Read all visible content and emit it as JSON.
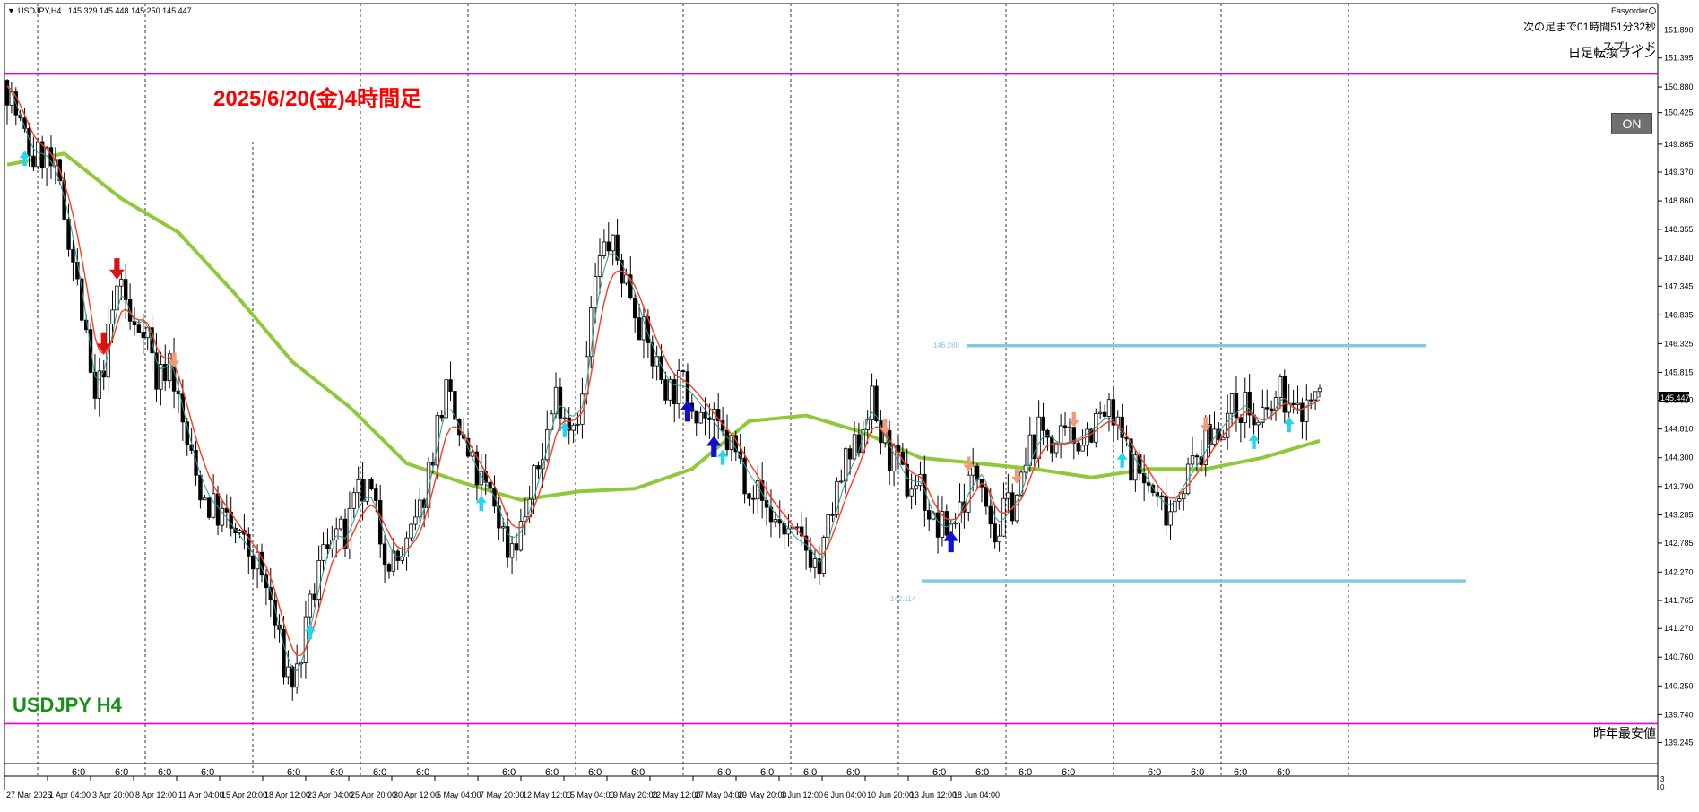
{
  "header": {
    "symbol_label": "USDJPY,H4",
    "ohlc": "145.329 145.448 145.250 145.447",
    "easyorder": "Easyorder",
    "countdown": "次の足まで01時間51分32秒",
    "spread": "スプレッド"
  },
  "annotations": {
    "date_title": "2025/6/20(金)4時間足",
    "pair_label": "USDJPY H4",
    "daily_line_label": "日足転換ライン",
    "last_year_low_label": "昨年最安値",
    "range_high": "146.288",
    "range_low": "142.114",
    "price_tag": "145.447"
  },
  "on_button": "ON",
  "colors": {
    "title_red": "#ff0000",
    "pair_green": "#1a8f1a",
    "magenta_line": "#e000e0",
    "range_line": "#87c7e6",
    "ma_long": "#8fc93a",
    "ma_fast": "#ff3b1f",
    "ma_slow": "#2e9e8e",
    "arrow_up_dark": "#1111cc",
    "arrow_down_dark": "#dd1111",
    "arrow_up_light": "#22d6f0",
    "arrow_down_light": "#f29a7a"
  },
  "chart_data": {
    "type": "candlestick",
    "symbol": "USDJPY",
    "timeframe": "H4",
    "ylim": [
      139.03,
      152.09
    ],
    "y_ticks": [
      "151.890",
      "151.395",
      "150.880",
      "150.425",
      "149.865",
      "149.370",
      "148.860",
      "148.355",
      "147.840",
      "147.345",
      "146.835",
      "146.325",
      "145.815",
      "145.320",
      "144.810",
      "144.300",
      "143.790",
      "143.285",
      "142.785",
      "142.270",
      "141.765",
      "141.270",
      "140.760",
      "140.250",
      "139.740",
      "139.245"
    ],
    "x_ticks": [
      "27 Mar 2025",
      "1 Apr 04:00",
      "3 Apr 20:00",
      "8 Apr 12:00",
      "11 Apr 04:00",
      "15 Apr 20:00",
      "18 Apr 12:00",
      "23 Apr 04:00",
      "25 Apr 20:00",
      "30 Apr 12:00",
      "5 May 04:00",
      "7 May 20:00",
      "12 May 12:00",
      "15 May 04:00",
      "19 May 20:00",
      "22 May 12:00",
      "27 May 04:00",
      "29 May 20:00",
      "3 Jun 12:00",
      "6 Jun 04:00",
      "10 Jun 20:00",
      "13 Jun 12:00",
      "18 Jun 04:00"
    ],
    "session_marker": "6:0",
    "horizontal_lines": [
      {
        "name": "日足転換ライン",
        "price": 151.11
      },
      {
        "name": "昨年最安値",
        "price": 139.58
      }
    ],
    "range_levels": {
      "high": 146.288,
      "low": 142.114
    },
    "current_price": 145.447,
    "close_path": [
      {
        "x": "27 Mar 2025",
        "y": 150.9
      },
      {
        "x": "28 Mar",
        "y": 150.2
      },
      {
        "x": "31 Mar",
        "y": 149.6
      },
      {
        "x": "1 Apr 04:00",
        "y": 149.7
      },
      {
        "x": "1 Apr",
        "y": 149.2
      },
      {
        "x": "2 Apr",
        "y": 148.2
      },
      {
        "x": "2 Apr",
        "y": 146.8
      },
      {
        "x": "3 Apr 20:00",
        "y": 145.2
      },
      {
        "x": "4 Apr",
        "y": 146.3
      },
      {
        "x": "7 Apr",
        "y": 147.6
      },
      {
        "x": "7 Apr",
        "y": 146.5
      },
      {
        "x": "8 Apr 12:00",
        "y": 146.8
      },
      {
        "x": "9 Apr",
        "y": 145.6
      },
      {
        "x": "9 Apr",
        "y": 146.1
      },
      {
        "x": "10 Apr",
        "y": 144.9
      },
      {
        "x": "10 Apr",
        "y": 144.0
      },
      {
        "x": "11 Apr 04:00",
        "y": 143.5
      },
      {
        "x": "14 Apr",
        "y": 143.3
      },
      {
        "x": "15 Apr 20:00",
        "y": 143.0
      },
      {
        "x": "16 Apr",
        "y": 142.7
      },
      {
        "x": "17 Apr",
        "y": 142.4
      },
      {
        "x": "18 Apr 12:00",
        "y": 141.8
      },
      {
        "x": "21 Apr",
        "y": 140.7
      },
      {
        "x": "21 Apr",
        "y": 140.3
      },
      {
        "x": "22 Apr",
        "y": 141.3
      },
      {
        "x": "22 Apr",
        "y": 142.4
      },
      {
        "x": "23 Apr 04:00",
        "y": 143.1
      },
      {
        "x": "24 Apr",
        "y": 142.8
      },
      {
        "x": "24 Apr",
        "y": 143.6
      },
      {
        "x": "25 Apr 20:00",
        "y": 143.7
      },
      {
        "x": "28 Apr",
        "y": 142.8
      },
      {
        "x": "28 Apr",
        "y": 142.4
      },
      {
        "x": "29 Apr",
        "y": 142.7
      },
      {
        "x": "29 Apr",
        "y": 143.3
      },
      {
        "x": "30 Apr 12:00",
        "y": 144.4
      },
      {
        "x": "1 May",
        "y": 145.5
      },
      {
        "x": "1 May",
        "y": 144.8
      },
      {
        "x": "2 May",
        "y": 144.2
      },
      {
        "x": "2 May",
        "y": 143.8
      },
      {
        "x": "5 May 04:00",
        "y": 143.5
      },
      {
        "x": "5 May",
        "y": 142.7
      },
      {
        "x": "6 May",
        "y": 143.0
      },
      {
        "x": "6 May",
        "y": 143.7
      },
      {
        "x": "7 May",
        "y": 144.6
      },
      {
        "x": "7 May",
        "y": 145.5
      },
      {
        "x": "7 May 20:00",
        "y": 144.9
      },
      {
        "x": "9 May",
        "y": 145.3
      },
      {
        "x": "9 May",
        "y": 147.4
      },
      {
        "x": "12 May 12:00",
        "y": 148.2
      },
      {
        "x": "12 May",
        "y": 147.7
      },
      {
        "x": "13 May",
        "y": 147.2
      },
      {
        "x": "13 May",
        "y": 146.4
      },
      {
        "x": "14 May",
        "y": 145.9
      },
      {
        "x": "14 May",
        "y": 145.5
      },
      {
        "x": "15 May 04:00",
        "y": 145.6
      },
      {
        "x": "16 May",
        "y": 145.3
      },
      {
        "x": "16 May",
        "y": 145.0
      },
      {
        "x": "19 May 20:00",
        "y": 144.7
      },
      {
        "x": "20 May",
        "y": 144.5
      },
      {
        "x": "20 May",
        "y": 144.0
      },
      {
        "x": "21 May",
        "y": 143.7
      },
      {
        "x": "21 May",
        "y": 143.3
      },
      {
        "x": "22 May 12:00",
        "y": 143.1
      },
      {
        "x": "23 May",
        "y": 142.8
      },
      {
        "x": "23 May",
        "y": 142.7
      },
      {
        "x": "23 May",
        "y": 142.3
      },
      {
        "x": "26 May",
        "y": 143.4
      },
      {
        "x": "27 May 04:00",
        "y": 144.1
      },
      {
        "x": "27 May",
        "y": 144.5
      },
      {
        "x": "28 May",
        "y": 145.4
      },
      {
        "x": "28 May",
        "y": 144.6
      },
      {
        "x": "29 May",
        "y": 144.2
      },
      {
        "x": "29 May 20:00",
        "y": 143.8
      },
      {
        "x": "30 May",
        "y": 143.9
      },
      {
        "x": "2 Jun",
        "y": 143.1
      },
      {
        "x": "2 Jun",
        "y": 143.0
      },
      {
        "x": "3 Jun 12:00",
        "y": 143.3
      },
      {
        "x": "3 Jun",
        "y": 143.9
      },
      {
        "x": "4 Jun",
        "y": 144.1
      },
      {
        "x": "4 Jun",
        "y": 142.9
      },
      {
        "x": "5 Jun",
        "y": 143.4
      },
      {
        "x": "5 Jun",
        "y": 143.7
      },
      {
        "x": "6 Jun 04:00",
        "y": 144.6
      },
      {
        "x": "6 Jun",
        "y": 144.8
      },
      {
        "x": "9 Jun",
        "y": 144.5
      },
      {
        "x": "9 Jun",
        "y": 144.6
      },
      {
        "x": "10 Jun",
        "y": 144.7
      },
      {
        "x": "10 Jun",
        "y": 144.9
      },
      {
        "x": "10 Jun 20:00",
        "y": 145.1
      },
      {
        "x": "11 Jun",
        "y": 144.7
      },
      {
        "x": "11 Jun",
        "y": 144.2
      },
      {
        "x": "12 Jun",
        "y": 143.9
      },
      {
        "x": "12 Jun",
        "y": 143.5
      },
      {
        "x": "13 Jun",
        "y": 143.4
      },
      {
        "x": "13 Jun 12:00",
        "y": 143.9
      },
      {
        "x": "13 Jun",
        "y": 144.2
      },
      {
        "x": "16 Jun",
        "y": 144.6
      },
      {
        "x": "16 Jun",
        "y": 144.9
      },
      {
        "x": "17 Jun",
        "y": 145.1
      },
      {
        "x": "17 Jun",
        "y": 145.3
      },
      {
        "x": "18 Jun 04:00",
        "y": 144.8
      },
      {
        "x": "18 Jun",
        "y": 145.1
      },
      {
        "x": "19 Jun",
        "y": 145.5
      },
      {
        "x": "19 Jun",
        "y": 145.0
      },
      {
        "x": "20 Jun",
        "y": 145.3
      },
      {
        "x": "20 Jun",
        "y": 145.447
      }
    ],
    "long_ma": [
      {
        "x": "27 Mar 2025",
        "y": 149.5
      },
      {
        "x": "1 Apr 04:00",
        "y": 149.7
      },
      {
        "x": "3 Apr 20:00",
        "y": 148.9
      },
      {
        "x": "8 Apr 12:00",
        "y": 148.3
      },
      {
        "x": "11 Apr 04:00",
        "y": 147.2
      },
      {
        "x": "15 Apr 20:00",
        "y": 146.0
      },
      {
        "x": "18 Apr 12:00",
        "y": 145.2
      },
      {
        "x": "23 Apr 04:00",
        "y": 144.2
      },
      {
        "x": "25 Apr 20:00",
        "y": 143.85
      },
      {
        "x": "30 Apr 12:00",
        "y": 143.55
      },
      {
        "x": "5 May 04:00",
        "y": 143.7
      },
      {
        "x": "7 May 20:00",
        "y": 143.75
      },
      {
        "x": "12 May 12:00",
        "y": 144.1
      },
      {
        "x": "15 May 04:00",
        "y": 144.95
      },
      {
        "x": "19 May 20:00",
        "y": 145.05
      },
      {
        "x": "22 May 12:00",
        "y": 144.75
      },
      {
        "x": "27 May 04:00",
        "y": 144.3
      },
      {
        "x": "29 May 20:00",
        "y": 144.2
      },
      {
        "x": "3 Jun 12:00",
        "y": 144.1
      },
      {
        "x": "6 Jun 04:00",
        "y": 143.95
      },
      {
        "x": "10 Jun 20:00",
        "y": 144.1
      },
      {
        "x": "13 Jun 12:00",
        "y": 144.1
      },
      {
        "x": "18 Jun 04:00",
        "y": 144.3
      },
      {
        "x": "20 Jun",
        "y": 144.6
      }
    ]
  }
}
